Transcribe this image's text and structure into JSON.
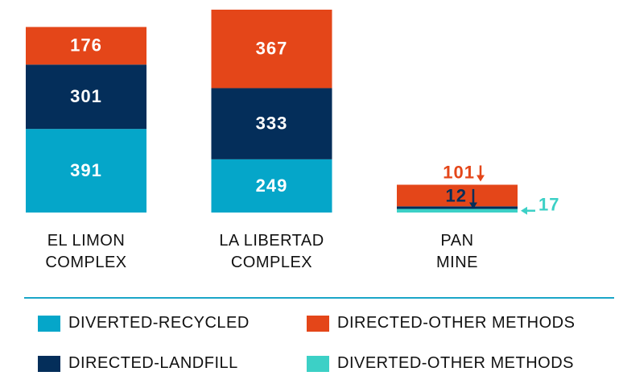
{
  "chart_data": {
    "type": "stacked_bar",
    "categories": [
      "EL LIMON\nCOMPLEX",
      "LA LIBERTAD\nCOMPLEX",
      "PAN\nMINE"
    ],
    "series": [
      {
        "name": "DIVERTED-RECYCLED",
        "color": "#05a6c9",
        "values": [
          391,
          249,
          null
        ]
      },
      {
        "name": "DIRECTED-OTHER METHODS",
        "color": "#e44619",
        "values": [
          176,
          367,
          101
        ]
      },
      {
        "name": "DIRECTED-LANDFILL",
        "color": "#042e5a",
        "values": [
          301,
          333,
          12
        ]
      },
      {
        "name": "DIVERTED-OTHER METHODS",
        "color": "#3cd0c6",
        "values": [
          null,
          null,
          17
        ]
      }
    ],
    "legend": "bottom"
  }
}
